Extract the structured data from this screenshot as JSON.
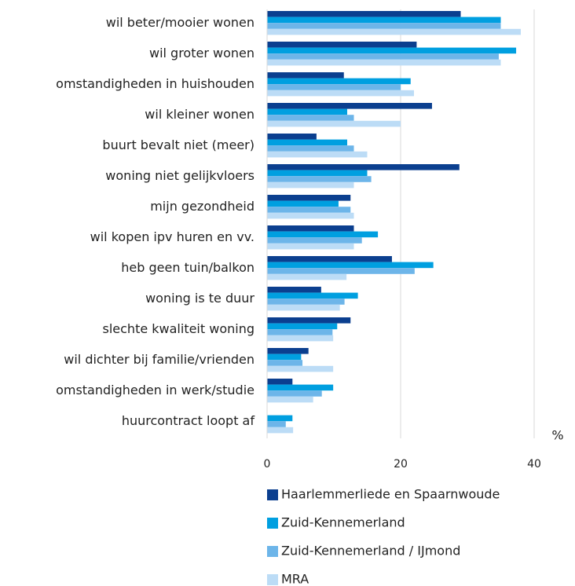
{
  "chart_data": {
    "type": "bar",
    "orientation": "horizontal",
    "categories": [
      "wil beter/mooier wonen",
      "wil groter wonen",
      "omstandigheden in huishouden",
      "wil kleiner wonen",
      "buurt bevalt niet (meer)",
      "woning niet gelijkvloers",
      "mijn gezondheid",
      "wil kopen ipv huren en vv.",
      "heb geen tuin/balkon",
      "woning is te duur",
      "slechte kwaliteit woning",
      "wil dichter bij familie/vrienden",
      "omstandigheden in werk/studie",
      "huurcontract loopt af"
    ],
    "series": [
      {
        "name": "Haarlemmerliede en Spaarnwoude",
        "color": "#0b3f8f",
        "values": [
          29,
          22.4,
          11.5,
          24.7,
          7.4,
          28.8,
          12.5,
          13,
          18.7,
          8.1,
          12.5,
          6.2,
          3.8,
          0
        ]
      },
      {
        "name": "Zuid-Kennemerland",
        "color": "#009fe0",
        "values": [
          35,
          37.3,
          21.5,
          12,
          12,
          15,
          10.7,
          16.6,
          24.9,
          13.6,
          10.5,
          5.1,
          9.9,
          3.8
        ]
      },
      {
        "name": "Zuid-Kennemerland / IJmond",
        "color": "#6db5e9",
        "values": [
          35,
          34.7,
          20,
          13,
          13,
          15.6,
          12.5,
          14.2,
          22.1,
          11.6,
          9.8,
          5.3,
          8.2,
          2.8
        ]
      },
      {
        "name": "MRA",
        "color": "#bcdcf6",
        "values": [
          38,
          35,
          22,
          20,
          15,
          13,
          13,
          13,
          11.9,
          10.9,
          9.9,
          9.9,
          6.9,
          3.9
        ]
      }
    ],
    "xlabel": "%",
    "xlim": [
      0,
      40
    ],
    "xticks": [
      0,
      20,
      40
    ],
    "grid": true,
    "legend": "bottom"
  }
}
